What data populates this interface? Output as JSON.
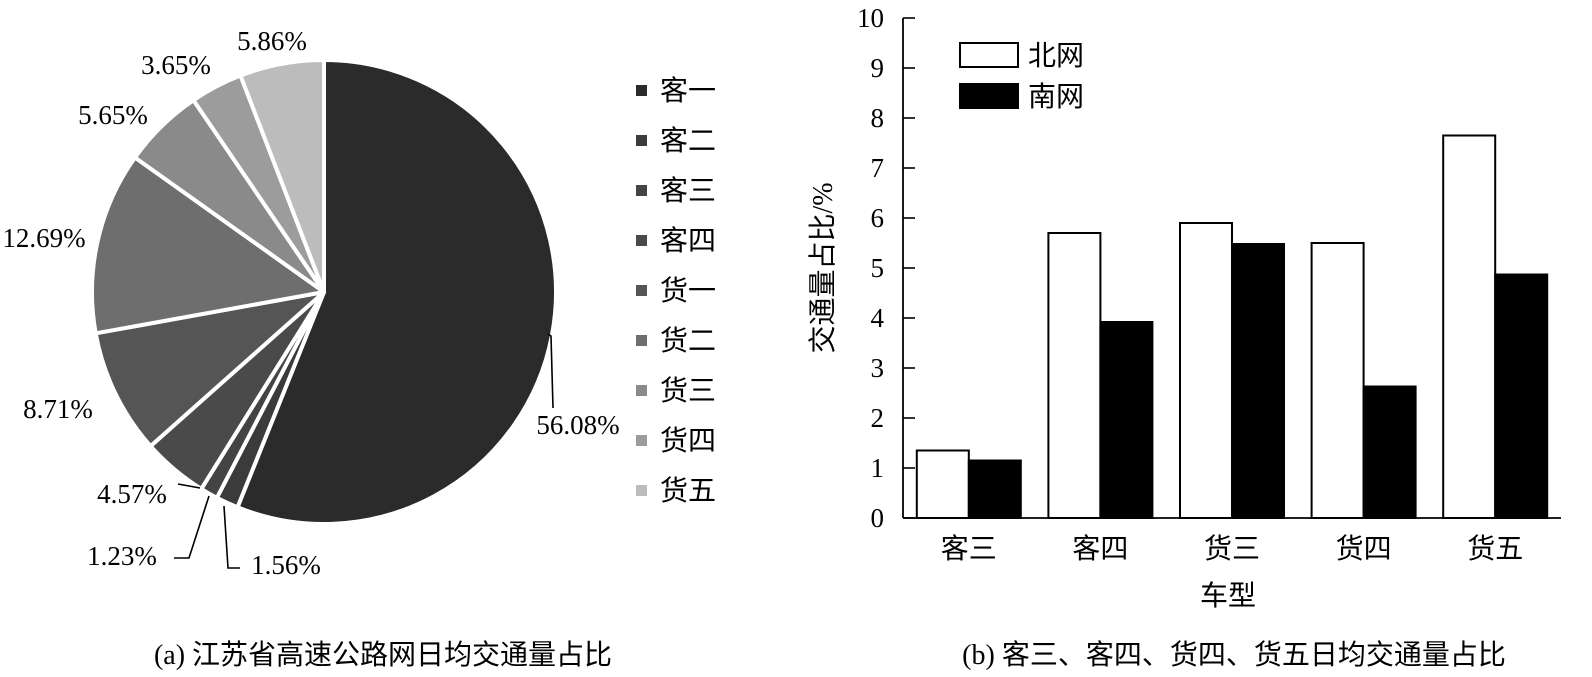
{
  "chart_data": [
    {
      "type": "pie",
      "caption": "(a) 江苏省高速公路网日均交通量占比",
      "categories": [
        "客一",
        "客二",
        "客三",
        "客四",
        "货一",
        "货二",
        "货三",
        "货四",
        "货五"
      ],
      "values": [
        56.08,
        1.56,
        1.23,
        4.57,
        8.71,
        12.69,
        5.65,
        3.65,
        5.86
      ],
      "labels": [
        "56.08%",
        "1.56%",
        "1.23%",
        "4.57%",
        "8.71%",
        "12.69%",
        "5.65%",
        "3.65%",
        "5.86%"
      ],
      "colors": [
        "#2b2b2b",
        "#3b3b3b",
        "#444444",
        "#4a4a4a",
        "#555555",
        "#6e6e6e",
        "#8a8a8a",
        "#9c9c9c",
        "#bcbcbc"
      ],
      "legend_position": "right",
      "start": "12 o'clock",
      "direction": "clockwise"
    },
    {
      "type": "bar",
      "caption": "(b) 客三、客四、货四、货五日均交通量占比",
      "categories": [
        "客三",
        "客四",
        "货三",
        "货四",
        "货五"
      ],
      "series": [
        {
          "name": "北网",
          "values": [
            1.35,
            5.7,
            5.9,
            5.5,
            7.65
          ],
          "fill": "#ffffff"
        },
        {
          "name": "南网",
          "values": [
            1.15,
            3.92,
            5.48,
            2.63,
            4.87
          ],
          "fill": "#000000"
        }
      ],
      "xlabel": "车型",
      "ylabel": "交通量占比/%",
      "ylim": [
        0,
        10
      ],
      "yticks": [
        0,
        1,
        2,
        3,
        4,
        5,
        6,
        7,
        8,
        9,
        10
      ],
      "legend_position": "top-left",
      "grid": false
    }
  ]
}
